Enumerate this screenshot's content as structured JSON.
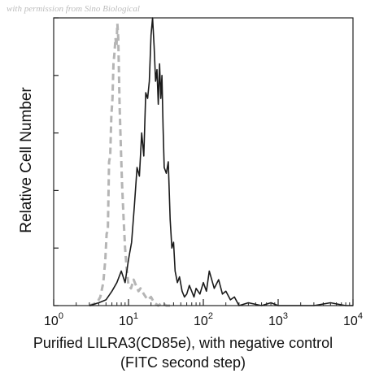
{
  "watermark": "with permission from Sino Biological",
  "chart_data": {
    "type": "line",
    "title": "",
    "xlabel_line1": "Purified LILRA3(CD85e), with negative control",
    "xlabel_line2": "(FITC second step)",
    "ylabel": "Relative Cell Number",
    "xscale": "log",
    "xlim": [
      1,
      10000
    ],
    "ylim": [
      0,
      1
    ],
    "grid": false,
    "legend": "none",
    "x_ticks": [
      {
        "value": 1,
        "base": "10",
        "exp": "0"
      },
      {
        "value": 10,
        "base": "10",
        "exp": "1"
      },
      {
        "value": 100,
        "base": "10",
        "exp": "2"
      },
      {
        "value": 1000,
        "base": "10",
        "exp": "3"
      },
      {
        "value": 10000,
        "base": "10",
        "exp": "4"
      }
    ],
    "series": [
      {
        "color": "#b5b5b5",
        "style": "dashed",
        "x": [
          3.0,
          3.8,
          4.2,
          4.6,
          4.9,
          5.1,
          5.3,
          5.5,
          5.7,
          5.9,
          6.1,
          6.3,
          6.5,
          6.7,
          6.9,
          7.1,
          7.3,
          7.6,
          7.9,
          8.2,
          8.6,
          9.0,
          9.5,
          10.0,
          10.8,
          11.7,
          12.6,
          13.6,
          14.5,
          16.0,
          18.0,
          20.0,
          22.0,
          25.0,
          28.0,
          32.0,
          36.0,
          40.0
        ],
        "y": [
          0.0,
          0.01,
          0.03,
          0.08,
          0.16,
          0.25,
          0.26,
          0.5,
          0.52,
          0.66,
          0.72,
          0.84,
          0.88,
          0.93,
          0.9,
          0.98,
          0.93,
          0.7,
          0.55,
          0.42,
          0.3,
          0.2,
          0.12,
          0.07,
          0.06,
          0.09,
          0.07,
          0.05,
          0.06,
          0.04,
          0.02,
          0.03,
          0.01,
          0.0,
          0.01,
          0.0,
          0.0,
          0.0
        ]
      },
      {
        "color": "#1a1a1a",
        "style": "solid",
        "x": [
          3.0,
          4.0,
          5.0,
          6.0,
          7.0,
          8.0,
          9.0,
          10.0,
          11.0,
          12.0,
          13.0,
          14.0,
          15.0,
          16.0,
          17.0,
          18.0,
          19.0,
          20.0,
          21.0,
          22.0,
          23.0,
          24.0,
          25.0,
          26.0,
          27.0,
          28.0,
          29.0,
          30.0,
          32.0,
          34.0,
          36.0,
          38.0,
          40.0,
          42.0,
          45.0,
          48.0,
          52.0,
          56.0,
          60.0,
          65.0,
          70.0,
          75.0,
          80.0,
          90.0,
          100.0,
          110.0,
          120.0,
          140.0,
          160.0,
          180.0,
          200.0,
          230.0,
          260.0,
          300.0,
          400.0,
          600.0,
          800.0,
          1000.0,
          1500.0,
          2000.0,
          3000.0,
          5000.0,
          8000.0,
          10000.0
        ],
        "y": [
          0.0,
          0.01,
          0.02,
          0.05,
          0.08,
          0.12,
          0.08,
          0.16,
          0.22,
          0.35,
          0.48,
          0.45,
          0.6,
          0.52,
          0.74,
          0.72,
          0.78,
          0.94,
          1.0,
          0.9,
          0.78,
          0.82,
          0.7,
          0.84,
          0.72,
          0.8,
          0.62,
          0.48,
          0.46,
          0.5,
          0.3,
          0.2,
          0.22,
          0.12,
          0.08,
          0.1,
          0.05,
          0.03,
          0.04,
          0.07,
          0.05,
          0.03,
          0.06,
          0.04,
          0.08,
          0.05,
          0.12,
          0.06,
          0.09,
          0.04,
          0.05,
          0.02,
          0.03,
          0.0,
          0.01,
          0.0,
          0.01,
          0.0,
          0.0,
          0.0,
          0.0,
          0.01,
          0.0,
          0.0
        ]
      }
    ]
  }
}
